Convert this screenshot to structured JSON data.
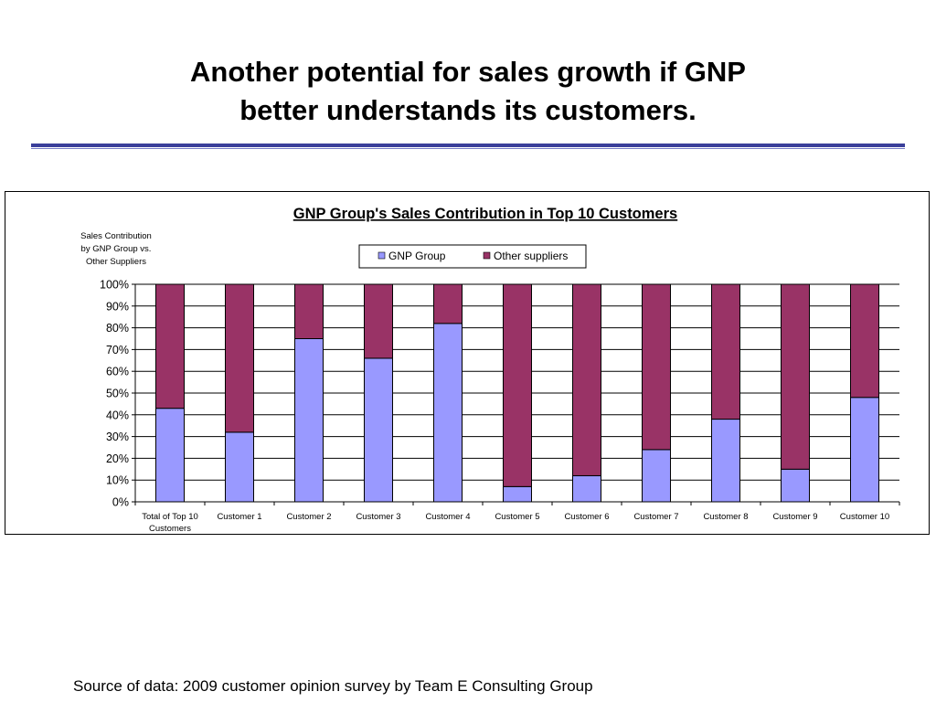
{
  "slide": {
    "title": "Another potential for sales growth if GNP\nbetter understands its customers.",
    "source": "Source of data: 2009 customer opinion survey by Team E Consulting Group"
  },
  "colors": {
    "gnp": "#9999ff",
    "other": "#993366",
    "rule": "#3a3f9a"
  },
  "chart_data": {
    "type": "bar",
    "stacked": true,
    "title": "GNP Group's Sales Contribution in Top 10 Customers",
    "ylabel": [
      "Sales Contribution",
      "by GNP Group vs.",
      "Other Suppliers"
    ],
    "xlabel": "",
    "ylim": [
      0,
      100
    ],
    "yticks": [
      0,
      10,
      20,
      30,
      40,
      50,
      60,
      70,
      80,
      90,
      100
    ],
    "ytick_labels": [
      "0%",
      "10%",
      "20%",
      "30%",
      "40%",
      "50%",
      "60%",
      "70%",
      "80%",
      "90%",
      "100%"
    ],
    "grid": true,
    "legend": "top-center",
    "categories": [
      [
        "Total of Top 10",
        "Customers"
      ],
      [
        "Customer 1"
      ],
      [
        "Customer 2"
      ],
      [
        "Customer 3"
      ],
      [
        "Customer 4"
      ],
      [
        "Customer 5"
      ],
      [
        "Customer 6"
      ],
      [
        "Customer 7"
      ],
      [
        "Customer 8"
      ],
      [
        "Customer 9"
      ],
      [
        "Customer 10"
      ]
    ],
    "series": [
      {
        "name": "GNP Group",
        "color": "#9999ff",
        "values": [
          43,
          32,
          75,
          66,
          82,
          7,
          12,
          24,
          38,
          15,
          48
        ]
      },
      {
        "name": "Other suppliers",
        "color": "#993366",
        "values": [
          57,
          68,
          25,
          34,
          18,
          93,
          88,
          76,
          62,
          85,
          52
        ]
      }
    ]
  }
}
